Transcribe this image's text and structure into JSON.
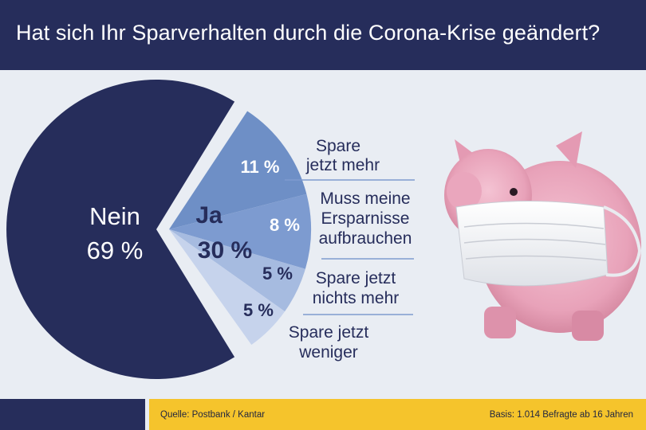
{
  "header": {
    "title": "Hat sich Ihr Sparverhalten durch die Corona-Krise geändert?"
  },
  "footer": {
    "source": "Quelle: Postbank / Kantar",
    "basis": "Basis: 1.014 Befragte ab 16 Jahren"
  },
  "colors": {
    "header_bg": "#262d5b",
    "nein": "#262d5b",
    "ja_11": "#6e8fc6",
    "ja_8": "#7d9bd0",
    "ja_5a": "#a6bbe0",
    "ja_5b": "#c6d3ec",
    "footer_yellow": "#f5c42c"
  },
  "chart_data": {
    "type": "pie",
    "title": "Hat sich Ihr Sparverhalten durch die Corona-Krise geändert?",
    "main": [
      {
        "label": "Nein",
        "value": 69,
        "value_label": "69 %"
      },
      {
        "label": "Ja",
        "value": 30,
        "value_label": "30 %"
      }
    ],
    "breakdown": [
      {
        "label_lines": [
          "Spare",
          "jetzt mehr"
        ],
        "value": 11,
        "value_label": "11 %"
      },
      {
        "label_lines": [
          "Muss meine",
          "Ersparnisse",
          "aufbrauchen"
        ],
        "value": 8,
        "value_label": "8 %"
      },
      {
        "label_lines": [
          "Spare jetzt",
          "nichts mehr"
        ],
        "value": 5,
        "value_label": "5 %"
      },
      {
        "label_lines": [
          "Spare jetzt",
          "weniger"
        ],
        "value": 5,
        "value_label": "5 %"
      }
    ]
  }
}
